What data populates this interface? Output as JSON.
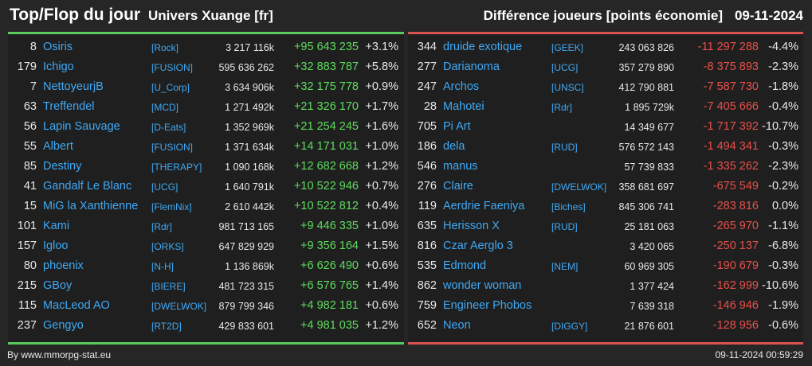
{
  "header": {
    "title": "Top/Flop du jour",
    "server": "Univers Xuange [fr]",
    "diff_label": "Différence joueurs [points économie]",
    "date": "09-11-2024"
  },
  "colors": {
    "top_accent": "#59c85f",
    "flop_accent": "#d9534f",
    "link": "#3fa9f5"
  },
  "top": [
    {
      "rank": "8",
      "name": "Osiris",
      "guild": "[Rock]",
      "points": "3 217 116k",
      "diff": "+95 643 235",
      "pct": "+3.1%"
    },
    {
      "rank": "179",
      "name": "Ichigo",
      "guild": "[FUSION]",
      "points": "595 636 262",
      "diff": "+32 883 787",
      "pct": "+5.8%"
    },
    {
      "rank": "7",
      "name": "NettoyeurjB",
      "guild": "[U_Corp]",
      "points": "3 634 906k",
      "diff": "+32 175 778",
      "pct": "+0.9%"
    },
    {
      "rank": "63",
      "name": "Treffendel",
      "guild": "[MCD]",
      "points": "1 271 492k",
      "diff": "+21 326 170",
      "pct": "+1.7%"
    },
    {
      "rank": "56",
      "name": "Lapin Sauvage",
      "guild": "[D-Eats]",
      "points": "1 352 969k",
      "diff": "+21 254 245",
      "pct": "+1.6%"
    },
    {
      "rank": "55",
      "name": "Albert",
      "guild": "[FUSION]",
      "points": "1 371 634k",
      "diff": "+14 171 031",
      "pct": "+1.0%"
    },
    {
      "rank": "85",
      "name": "Destiny",
      "guild": "[THERAPY]",
      "points": "1 090 168k",
      "diff": "+12 682 668",
      "pct": "+1.2%"
    },
    {
      "rank": "41",
      "name": "Gandalf Le Blanc",
      "guild": "[UCG]",
      "points": "1 640 791k",
      "diff": "+10 522 946",
      "pct": "+0.7%"
    },
    {
      "rank": "15",
      "name": "MiG la Xanthienne",
      "guild": "[FlemNix]",
      "points": "2 610 442k",
      "diff": "+10 522 812",
      "pct": "+0.4%"
    },
    {
      "rank": "101",
      "name": "Kami",
      "guild": "[Rdr]",
      "points": "981 713 165",
      "diff": "+9 446 335",
      "pct": "+1.0%"
    },
    {
      "rank": "157",
      "name": "Igloo",
      "guild": "[ORKS]",
      "points": "647 829 929",
      "diff": "+9 356 164",
      "pct": "+1.5%"
    },
    {
      "rank": "80",
      "name": "phoenix",
      "guild": "[N-H]",
      "points": "1 136 869k",
      "diff": "+6 626 490",
      "pct": "+0.6%"
    },
    {
      "rank": "215",
      "name": "GBoy",
      "guild": "[BIERE]",
      "points": "481 723 315",
      "diff": "+6 576 765",
      "pct": "+1.4%"
    },
    {
      "rank": "115",
      "name": "MacLeod AO",
      "guild": "[DWELWOK]",
      "points": "879 799 346",
      "diff": "+4 982 181",
      "pct": "+0.6%"
    },
    {
      "rank": "237",
      "name": "Gengyo",
      "guild": "[RT2D]",
      "points": "429 833 601",
      "diff": "+4 981 035",
      "pct": "+1.2%"
    }
  ],
  "flop": [
    {
      "rank": "344",
      "name": "druide exotique",
      "guild": "[GEEK]",
      "points": "243 063 826",
      "diff": "-11 297 288",
      "pct": "-4.4%"
    },
    {
      "rank": "277",
      "name": "Darianoma",
      "guild": "[UCG]",
      "points": "357 279 890",
      "diff": "-8 375 893",
      "pct": "-2.3%"
    },
    {
      "rank": "247",
      "name": "Archos",
      "guild": "[UNSC]",
      "points": "412 790 881",
      "diff": "-7 587 730",
      "pct": "-1.8%"
    },
    {
      "rank": "28",
      "name": "Mahotei",
      "guild": "[Rdr]",
      "points": "1 895 729k",
      "diff": "-7 405 666",
      "pct": "-0.4%"
    },
    {
      "rank": "705",
      "name": "Pi Art",
      "guild": "",
      "points": "14 349 677",
      "diff": "-1 717 392",
      "pct": "-10.7%"
    },
    {
      "rank": "186",
      "name": "dela",
      "guild": "[RUD]",
      "points": "576 572 143",
      "diff": "-1 494 341",
      "pct": "-0.3%"
    },
    {
      "rank": "546",
      "name": "manus",
      "guild": "",
      "points": "57 739 833",
      "diff": "-1 335 262",
      "pct": "-2.3%"
    },
    {
      "rank": "276",
      "name": "Claire",
      "guild": "[DWELWOK]",
      "points": "358 681 697",
      "diff": "-675 549",
      "pct": "-0.2%"
    },
    {
      "rank": "119",
      "name": "Aerdrie Faeniya",
      "guild": "[Biches]",
      "points": "845 306 741",
      "diff": "-283 816",
      "pct": "0.0%"
    },
    {
      "rank": "635",
      "name": "Herisson X",
      "guild": "[RUD]",
      "points": "25 181 063",
      "diff": "-265 970",
      "pct": "-1.1%"
    },
    {
      "rank": "816",
      "name": "Czar Aerglo 3",
      "guild": "",
      "points": "3 420 065",
      "diff": "-250 137",
      "pct": "-6.8%"
    },
    {
      "rank": "535",
      "name": "Edmond",
      "guild": "[NEM]",
      "points": "60 969 305",
      "diff": "-190 679",
      "pct": "-0.3%"
    },
    {
      "rank": "862",
      "name": "wonder woman",
      "guild": "",
      "points": "1 377 424",
      "diff": "-162 999",
      "pct": "-10.6%"
    },
    {
      "rank": "759",
      "name": "Engineer Phobos",
      "guild": "",
      "points": "7 639 318",
      "diff": "-146 946",
      "pct": "-1.9%"
    },
    {
      "rank": "652",
      "name": "Neon",
      "guild": "[DIGGY]",
      "points": "21 876 601",
      "diff": "-128 956",
      "pct": "-0.6%"
    }
  ],
  "footer": {
    "source": "By www.mmorpg-stat.eu",
    "timestamp": "09-11-2024 00:59:29"
  }
}
